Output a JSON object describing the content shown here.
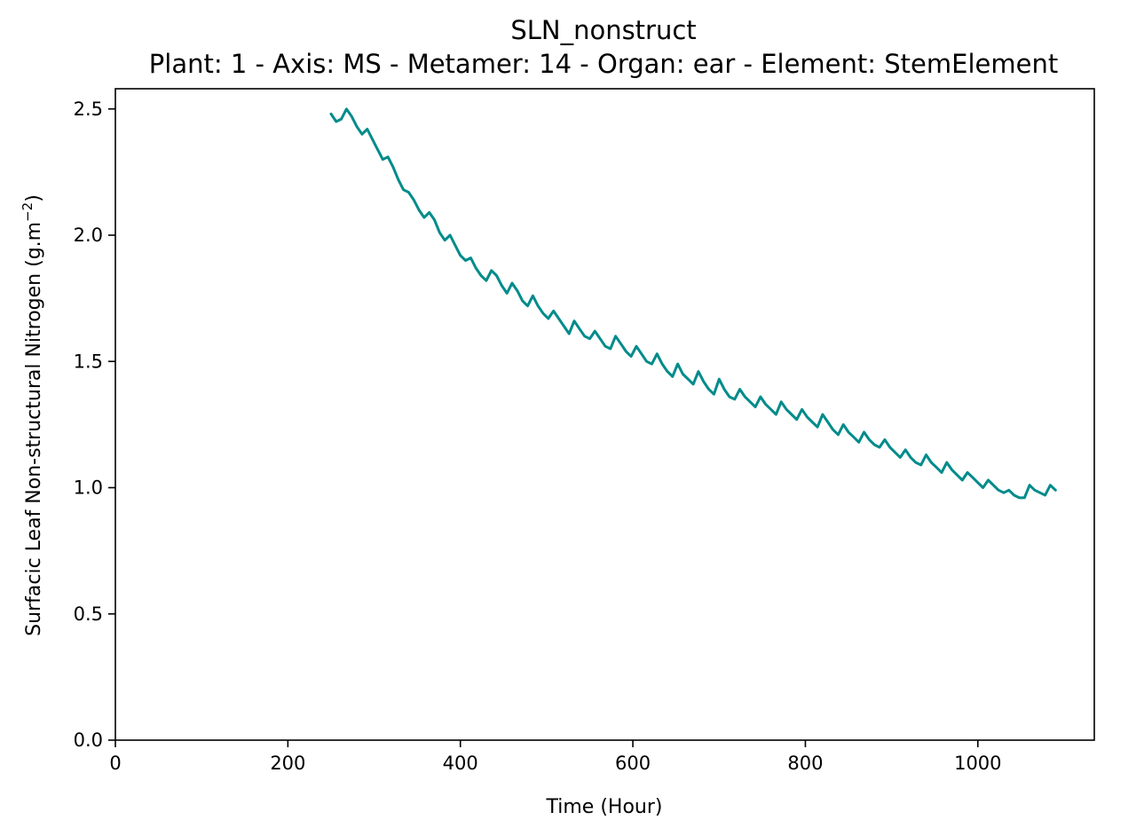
{
  "chart_data": {
    "type": "line",
    "title": "SLN_nonstruct",
    "subtitle": "Plant: 1 - Axis: MS - Metamer: 14 - Organ: ear - Element: StemElement",
    "xlabel": "Time (Hour)",
    "ylabel_main": "Surfacic Leaf Non-structural Nitrogen (g.m",
    "ylabel_sup": "−2",
    "ylabel_end": ")",
    "xlim": [
      0,
      1135
    ],
    "ylim": [
      0,
      2.58
    ],
    "x_ticks": [
      0,
      200,
      400,
      600,
      800,
      1000
    ],
    "x_tick_labels": [
      "0",
      "200",
      "400",
      "600",
      "800",
      "1000"
    ],
    "y_ticks": [
      0,
      0.5,
      1.0,
      1.5,
      2.0,
      2.5
    ],
    "y_tick_labels": [
      "0.0",
      "0.5",
      "1.0",
      "1.5",
      "2.0",
      "2.5"
    ],
    "grid": false,
    "series": [
      {
        "color": "#008b8b",
        "x": [
          250,
          256,
          262,
          268,
          274,
          280,
          286,
          292,
          298,
          304,
          310,
          316,
          322,
          328,
          334,
          340,
          346,
          352,
          358,
          364,
          370,
          376,
          382,
          388,
          394,
          400,
          406,
          412,
          418,
          424,
          430,
          436,
          442,
          448,
          454,
          460,
          466,
          472,
          478,
          484,
          490,
          496,
          502,
          508,
          514,
          520,
          526,
          532,
          538,
          544,
          550,
          556,
          562,
          568,
          574,
          580,
          586,
          592,
          598,
          604,
          610,
          616,
          622,
          628,
          634,
          640,
          646,
          652,
          658,
          664,
          670,
          676,
          682,
          688,
          694,
          700,
          706,
          712,
          718,
          724,
          730,
          736,
          742,
          748,
          754,
          760,
          766,
          772,
          778,
          784,
          790,
          796,
          802,
          808,
          814,
          820,
          826,
          832,
          838,
          844,
          850,
          856,
          862,
          868,
          874,
          880,
          886,
          892,
          898,
          904,
          910,
          916,
          922,
          928,
          934,
          940,
          946,
          952,
          958,
          964,
          970,
          976,
          982,
          988,
          994,
          1000,
          1006,
          1012,
          1018,
          1024,
          1030,
          1036,
          1042,
          1048,
          1054,
          1060,
          1066,
          1072,
          1078,
          1084,
          1090
        ],
        "y": [
          2.48,
          2.45,
          2.46,
          2.5,
          2.47,
          2.43,
          2.4,
          2.42,
          2.38,
          2.34,
          2.3,
          2.31,
          2.27,
          2.22,
          2.18,
          2.17,
          2.14,
          2.1,
          2.07,
          2.09,
          2.06,
          2.01,
          1.98,
          2.0,
          1.96,
          1.92,
          1.9,
          1.91,
          1.87,
          1.84,
          1.82,
          1.86,
          1.84,
          1.8,
          1.77,
          1.81,
          1.78,
          1.74,
          1.72,
          1.76,
          1.72,
          1.69,
          1.67,
          1.7,
          1.67,
          1.64,
          1.61,
          1.66,
          1.63,
          1.6,
          1.59,
          1.62,
          1.59,
          1.56,
          1.55,
          1.6,
          1.57,
          1.54,
          1.52,
          1.56,
          1.53,
          1.5,
          1.49,
          1.53,
          1.49,
          1.46,
          1.44,
          1.49,
          1.45,
          1.43,
          1.41,
          1.46,
          1.42,
          1.39,
          1.37,
          1.43,
          1.39,
          1.36,
          1.35,
          1.39,
          1.36,
          1.34,
          1.32,
          1.36,
          1.33,
          1.31,
          1.29,
          1.34,
          1.31,
          1.29,
          1.27,
          1.31,
          1.28,
          1.26,
          1.24,
          1.29,
          1.26,
          1.23,
          1.21,
          1.25,
          1.22,
          1.2,
          1.18,
          1.22,
          1.19,
          1.17,
          1.16,
          1.19,
          1.16,
          1.14,
          1.12,
          1.15,
          1.12,
          1.1,
          1.09,
          1.13,
          1.1,
          1.08,
          1.06,
          1.1,
          1.07,
          1.05,
          1.03,
          1.06,
          1.04,
          1.02,
          1.0,
          1.03,
          1.01,
          0.99,
          0.98,
          0.99,
          0.97,
          0.96,
          0.96,
          1.01,
          0.99,
          0.98,
          0.97,
          1.01,
          0.99
        ]
      }
    ]
  }
}
